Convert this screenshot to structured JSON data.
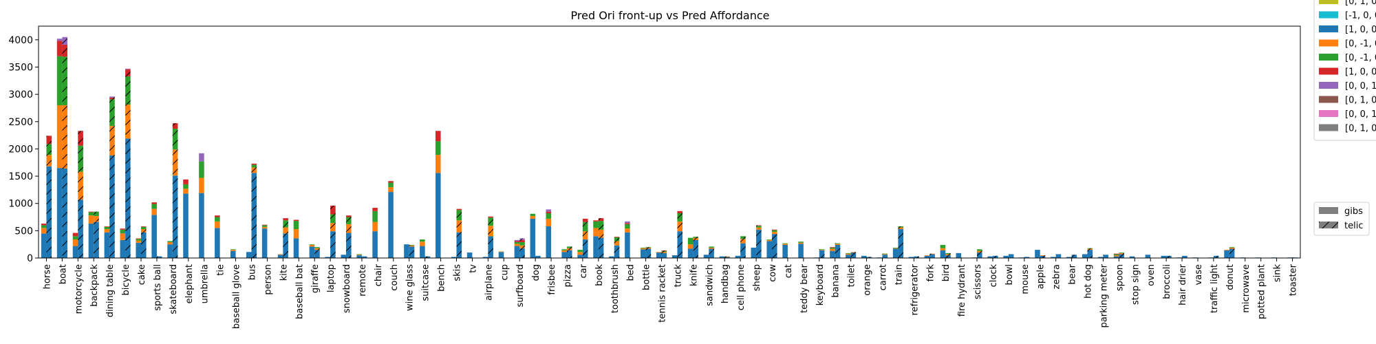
{
  "chart_data": {
    "type": "bar",
    "stacked": true,
    "title": "Pred Ori front-up vs Pred Affordance",
    "xlabel": "",
    "ylabel": "",
    "ylim": [
      0,
      4250
    ],
    "yticks": [
      0,
      500,
      1000,
      1500,
      2000,
      2500,
      3000,
      3500,
      4000
    ],
    "grid": false,
    "categories": [
      "horse",
      "boat",
      "motorcycle",
      "backpack",
      "dining table",
      "bicycle",
      "cake",
      "sports ball",
      "skateboard",
      "elephant",
      "umbrella",
      "tie",
      "baseball glove",
      "bus",
      "person",
      "kite",
      "baseball bat",
      "giraffe",
      "laptop",
      "snowboard",
      "remote",
      "chair",
      "couch",
      "wine glass",
      "suitcase",
      "bench",
      "skis",
      "tv",
      "airplane",
      "cup",
      "surfboard",
      "dog",
      "frisbee",
      "pizza",
      "car",
      "book",
      "toothbrush",
      "bed",
      "bottle",
      "tennis racket",
      "truck",
      "knife",
      "sandwich",
      "handbag",
      "cell phone",
      "sheep",
      "cow",
      "cat",
      "teddy bear",
      "keyboard",
      "banana",
      "toilet",
      "orange",
      "carrot",
      "train",
      "refrigerator",
      "fork",
      "bird",
      "fire hydrant",
      "scissors",
      "clock",
      "bowl",
      "mouse",
      "apple",
      "zebra",
      "bear",
      "hot dog",
      "parking meter",
      "spoon",
      "stop sign",
      "oven",
      "broccoli",
      "hair drier",
      "vase",
      "traffic light",
      "donut",
      "microwave",
      "potted plant",
      "sink",
      "toaster"
    ],
    "hatch_legend": {
      "position": "right",
      "entries": [
        {
          "label": "gibs",
          "hatch": false
        },
        {
          "label": "telic",
          "hatch": true
        }
      ]
    },
    "color_legend": {
      "position": "top-right",
      "entries": [
        {
          "label": "[0, 1, 0",
          "color": "#bcbd22"
        },
        {
          "label": "[-1, 0, 0",
          "color": "#17becf"
        },
        {
          "label": "[1, 0, 0",
          "color": "#1f77b4"
        },
        {
          "label": "[0, -1, 0",
          "color": "#ff7f0e"
        },
        {
          "label": "[0, -1, 0",
          "color": "#2ca02c"
        },
        {
          "label": "[1, 0, 0",
          "color": "#d62728"
        },
        {
          "label": "[0, 0, 1",
          "color": "#9467bd"
        },
        {
          "label": "[0, 1, 0",
          "color": "#8c564b"
        },
        {
          "label": "[0, 0, 1",
          "color": "#e377c2"
        },
        {
          "label": "[0, 1, 0",
          "color": "#7f7f7f"
        }
      ]
    },
    "segment_order": [
      "[1, 0, 0",
      "[0, -1, 0",
      "[0, -1, 0 ",
      "[1, 0, 0 ",
      "[0, 0, 1"
    ],
    "series": [
      {
        "name": "gibs",
        "colors": [
          "#1f77b4",
          "#ff7f0e",
          "#2ca02c",
          "#d62728",
          "#9467bd"
        ],
        "stacks": [
          [
            450,
            100,
            50,
            30,
            0
          ],
          [
            1650,
            1150,
            900,
            280,
            40
          ],
          [
            220,
            120,
            60,
            60,
            0
          ],
          [
            630,
            150,
            60,
            10,
            0
          ],
          [
            470,
            60,
            40,
            10,
            0
          ],
          [
            330,
            120,
            70,
            20,
            0
          ],
          [
            280,
            40,
            30,
            10,
            0
          ],
          [
            790,
            110,
            90,
            30,
            0
          ],
          [
            250,
            40,
            20,
            0,
            0
          ],
          [
            1180,
            90,
            80,
            90,
            0
          ],
          [
            1190,
            280,
            300,
            0,
            150
          ],
          [
            550,
            120,
            80,
            30,
            0
          ],
          [
            130,
            20,
            10,
            0,
            0
          ],
          [
            110,
            0,
            0,
            0,
            0
          ],
          [
            540,
            30,
            30,
            10,
            0
          ],
          [
            60,
            10,
            0,
            0,
            0
          ],
          [
            360,
            170,
            150,
            20,
            0
          ],
          [
            210,
            30,
            10,
            0,
            0
          ],
          [
            20,
            0,
            0,
            0,
            0
          ],
          [
            60,
            0,
            0,
            0,
            0
          ],
          [
            50,
            10,
            10,
            0,
            0
          ],
          [
            490,
            170,
            200,
            60,
            0
          ],
          [
            1210,
            90,
            80,
            30,
            0
          ],
          [
            250,
            0,
            0,
            0,
            0
          ],
          [
            220,
            80,
            40,
            0,
            0
          ],
          [
            1560,
            330,
            250,
            190,
            0
          ],
          [
            20,
            0,
            0,
            0,
            0
          ],
          [
            100,
            0,
            0,
            0,
            0
          ],
          [
            20,
            0,
            0,
            0,
            0
          ],
          [
            110,
            10,
            0,
            0,
            0
          ],
          [
            220,
            40,
            30,
            20,
            20
          ],
          [
            720,
            50,
            40,
            0,
            0
          ],
          [
            580,
            140,
            100,
            30,
            40
          ],
          [
            110,
            30,
            20,
            0,
            0
          ],
          [
            60,
            50,
            40,
            0,
            0
          ],
          [
            400,
            150,
            120,
            20,
            0
          ],
          [
            30,
            0,
            0,
            0,
            0
          ],
          [
            470,
            70,
            80,
            20,
            30
          ],
          [
            160,
            20,
            10,
            0,
            0
          ],
          [
            100,
            10,
            0,
            0,
            0
          ],
          [
            50,
            0,
            0,
            0,
            0
          ],
          [
            170,
            80,
            120,
            0,
            0
          ],
          [
            60,
            0,
            0,
            0,
            0
          ],
          [
            30,
            0,
            0,
            0,
            0
          ],
          [
            40,
            0,
            0,
            0,
            0
          ],
          [
            190,
            0,
            0,
            0,
            0
          ],
          [
            310,
            20,
            10,
            0,
            0
          ],
          [
            240,
            20,
            10,
            0,
            0
          ],
          [
            260,
            20,
            20,
            0,
            0
          ],
          [
            10,
            0,
            0,
            0,
            0
          ],
          [
            130,
            40,
            20,
            10,
            0
          ],
          [
            60,
            20,
            10,
            0,
            0
          ],
          [
            40,
            0,
            0,
            0,
            0
          ],
          [
            10,
            0,
            0,
            0,
            0
          ],
          [
            170,
            10,
            10,
            0,
            0
          ],
          [
            20,
            0,
            0,
            0,
            0
          ],
          [
            40,
            10,
            0,
            0,
            0
          ],
          [
            140,
            40,
            60,
            0,
            0
          ],
          [
            90,
            0,
            0,
            0,
            0
          ],
          [
            10,
            0,
            0,
            0,
            0
          ],
          [
            30,
            0,
            0,
            0,
            0
          ],
          [
            40,
            0,
            0,
            0,
            0
          ],
          [
            10,
            0,
            0,
            0,
            0
          ],
          [
            150,
            0,
            0,
            0,
            0
          ],
          [
            20,
            0,
            0,
            0,
            0
          ],
          [
            20,
            0,
            0,
            0,
            0
          ],
          [
            70,
            0,
            0,
            0,
            0
          ],
          [
            20,
            0,
            0,
            0,
            0
          ],
          [
            30,
            20,
            20,
            10,
            0
          ],
          [
            30,
            0,
            0,
            0,
            0
          ],
          [
            60,
            0,
            0,
            0,
            0
          ],
          [
            40,
            0,
            0,
            0,
            0
          ],
          [
            10,
            0,
            0,
            0,
            0
          ],
          [
            10,
            0,
            0,
            0,
            0
          ],
          [
            10,
            0,
            0,
            0,
            0
          ],
          [
            140,
            10,
            0,
            0,
            0
          ],
          [
            10,
            0,
            0,
            0,
            0
          ],
          [
            10,
            0,
            0,
            0,
            0
          ],
          [
            10,
            0,
            0,
            0,
            0
          ],
          [
            10,
            0,
            0,
            0,
            0
          ]
        ]
      },
      {
        "name": "telic",
        "colors": [
          "#1f77b4",
          "#ff7f0e",
          "#2ca02c",
          "#d62728",
          "#9467bd"
        ],
        "stacks": [
          [
            1680,
            210,
            200,
            150,
            0
          ],
          [
            1640,
            1160,
            890,
            220,
            140
          ],
          [
            1070,
            510,
            480,
            270,
            0
          ],
          [
            660,
            110,
            80,
            0,
            0
          ],
          [
            1880,
            540,
            490,
            30,
            20
          ],
          [
            2190,
            620,
            520,
            130,
            10
          ],
          [
            470,
            60,
            40,
            10,
            0
          ],
          [
            30,
            0,
            0,
            0,
            0
          ],
          [
            1510,
            480,
            380,
            100,
            0
          ],
          [
            0,
            0,
            0,
            0,
            0
          ],
          [
            0,
            0,
            0,
            0,
            0
          ],
          [
            0,
            0,
            0,
            0,
            0
          ],
          [
            0,
            0,
            0,
            0,
            0
          ],
          [
            1560,
            100,
            50,
            20,
            0
          ],
          [
            0,
            0,
            0,
            0,
            0
          ],
          [
            450,
            110,
            130,
            40,
            0
          ],
          [
            0,
            0,
            0,
            0,
            0
          ],
          [
            150,
            30,
            20,
            0,
            0
          ],
          [
            490,
            150,
            160,
            160,
            0
          ],
          [
            460,
            160,
            130,
            30,
            0
          ],
          [
            30,
            0,
            0,
            0,
            0
          ],
          [
            0,
            0,
            0,
            0,
            0
          ],
          [
            0,
            0,
            0,
            0,
            0
          ],
          [
            210,
            20,
            10,
            0,
            0
          ],
          [
            30,
            0,
            0,
            0,
            0
          ],
          [
            0,
            0,
            0,
            0,
            0
          ],
          [
            470,
            220,
            190,
            20,
            0
          ],
          [
            0,
            0,
            0,
            0,
            0
          ],
          [
            400,
            190,
            150,
            20,
            0
          ],
          [
            0,
            0,
            0,
            0,
            0
          ],
          [
            180,
            50,
            60,
            40,
            30
          ],
          [
            40,
            0,
            0,
            0,
            0
          ],
          [
            0,
            0,
            0,
            0,
            0
          ],
          [
            140,
            40,
            30,
            0,
            0
          ],
          [
            340,
            150,
            170,
            60,
            0
          ],
          [
            370,
            150,
            160,
            50,
            0
          ],
          [
            230,
            80,
            70,
            10,
            0
          ],
          [
            0,
            0,
            0,
            0,
            0
          ],
          [
            170,
            20,
            10,
            0,
            0
          ],
          [
            90,
            20,
            20,
            10,
            0
          ],
          [
            490,
            180,
            150,
            40,
            0
          ],
          [
            330,
            40,
            20,
            0,
            0
          ],
          [
            170,
            20,
            20,
            0,
            0
          ],
          [
            20,
            10,
            0,
            0,
            0
          ],
          [
            270,
            80,
            50,
            0,
            0
          ],
          [
            520,
            40,
            30,
            10,
            0
          ],
          [
            440,
            40,
            30,
            10,
            0
          ],
          [
            0,
            0,
            0,
            0,
            0
          ],
          [
            0,
            0,
            0,
            0,
            0
          ],
          [
            140,
            10,
            10,
            0,
            0
          ],
          [
            240,
            20,
            10,
            0,
            0
          ],
          [
            100,
            10,
            0,
            0,
            0
          ],
          [
            20,
            0,
            0,
            0,
            0
          ],
          [
            60,
            10,
            10,
            0,
            0
          ],
          [
            530,
            30,
            20,
            0,
            0
          ],
          [
            30,
            0,
            0,
            0,
            0
          ],
          [
            70,
            10,
            0,
            0,
            0
          ],
          [
            50,
            20,
            20,
            0,
            0
          ],
          [
            0,
            0,
            0,
            0,
            0
          ],
          [
            100,
            30,
            30,
            0,
            0
          ],
          [
            40,
            0,
            0,
            0,
            0
          ],
          [
            70,
            0,
            0,
            0,
            0
          ],
          [
            20,
            0,
            0,
            0,
            0
          ],
          [
            40,
            10,
            0,
            0,
            0
          ],
          [
            70,
            0,
            0,
            0,
            0
          ],
          [
            60,
            0,
            0,
            0,
            0
          ],
          [
            150,
            20,
            10,
            0,
            0
          ],
          [
            60,
            0,
            0,
            0,
            0
          ],
          [
            70,
            20,
            10,
            0,
            0
          ],
          [
            0,
            0,
            0,
            0,
            0
          ],
          [
            0,
            0,
            0,
            0,
            0
          ],
          [
            40,
            0,
            0,
            0,
            0
          ],
          [
            40,
            0,
            0,
            0,
            0
          ],
          [
            0,
            0,
            0,
            0,
            0
          ],
          [
            40,
            0,
            0,
            0,
            0
          ],
          [
            170,
            20,
            10,
            0,
            0
          ],
          [
            0,
            0,
            0,
            0,
            0
          ],
          [
            0,
            0,
            0,
            0,
            0
          ],
          [
            0,
            0,
            0,
            0,
            0
          ],
          [
            10,
            0,
            0,
            0,
            0
          ]
        ]
      }
    ]
  }
}
